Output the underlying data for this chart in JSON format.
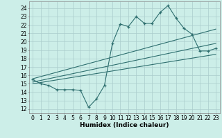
{
  "title": "",
  "xlabel": "Humidex (Indice chaleur)",
  "background_color": "#cceee8",
  "grid_color": "#aacccc",
  "line_color": "#2d6e6e",
  "xlim": [
    -0.5,
    23.5
  ],
  "ylim": [
    11.5,
    24.8
  ],
  "xticks": [
    0,
    1,
    2,
    3,
    4,
    5,
    6,
    7,
    8,
    9,
    10,
    11,
    12,
    13,
    14,
    15,
    16,
    17,
    18,
    19,
    20,
    21,
    22,
    23
  ],
  "yticks": [
    12,
    13,
    14,
    15,
    16,
    17,
    18,
    19,
    20,
    21,
    22,
    23,
    24
  ],
  "main_x": [
    0,
    1,
    2,
    3,
    4,
    5,
    6,
    7,
    8,
    9,
    10,
    11,
    12,
    13,
    14,
    15,
    16,
    17,
    18,
    19,
    20,
    21,
    22,
    23
  ],
  "main_y": [
    15.5,
    15.0,
    14.8,
    14.3,
    14.3,
    14.3,
    14.2,
    12.2,
    13.2,
    14.8,
    19.8,
    22.1,
    21.8,
    23.0,
    22.2,
    22.2,
    23.5,
    24.3,
    22.8,
    21.6,
    20.9,
    18.9,
    18.9,
    19.2
  ],
  "line1_x": [
    0,
    23
  ],
  "line1_y": [
    15.6,
    21.5
  ],
  "line2_x": [
    0,
    23
  ],
  "line2_y": [
    15.2,
    19.8
  ],
  "line3_x": [
    0,
    23
  ],
  "line3_y": [
    15.0,
    18.5
  ],
  "fontsize_xlabel": 6.5,
  "fontsize_tick": 5.5
}
